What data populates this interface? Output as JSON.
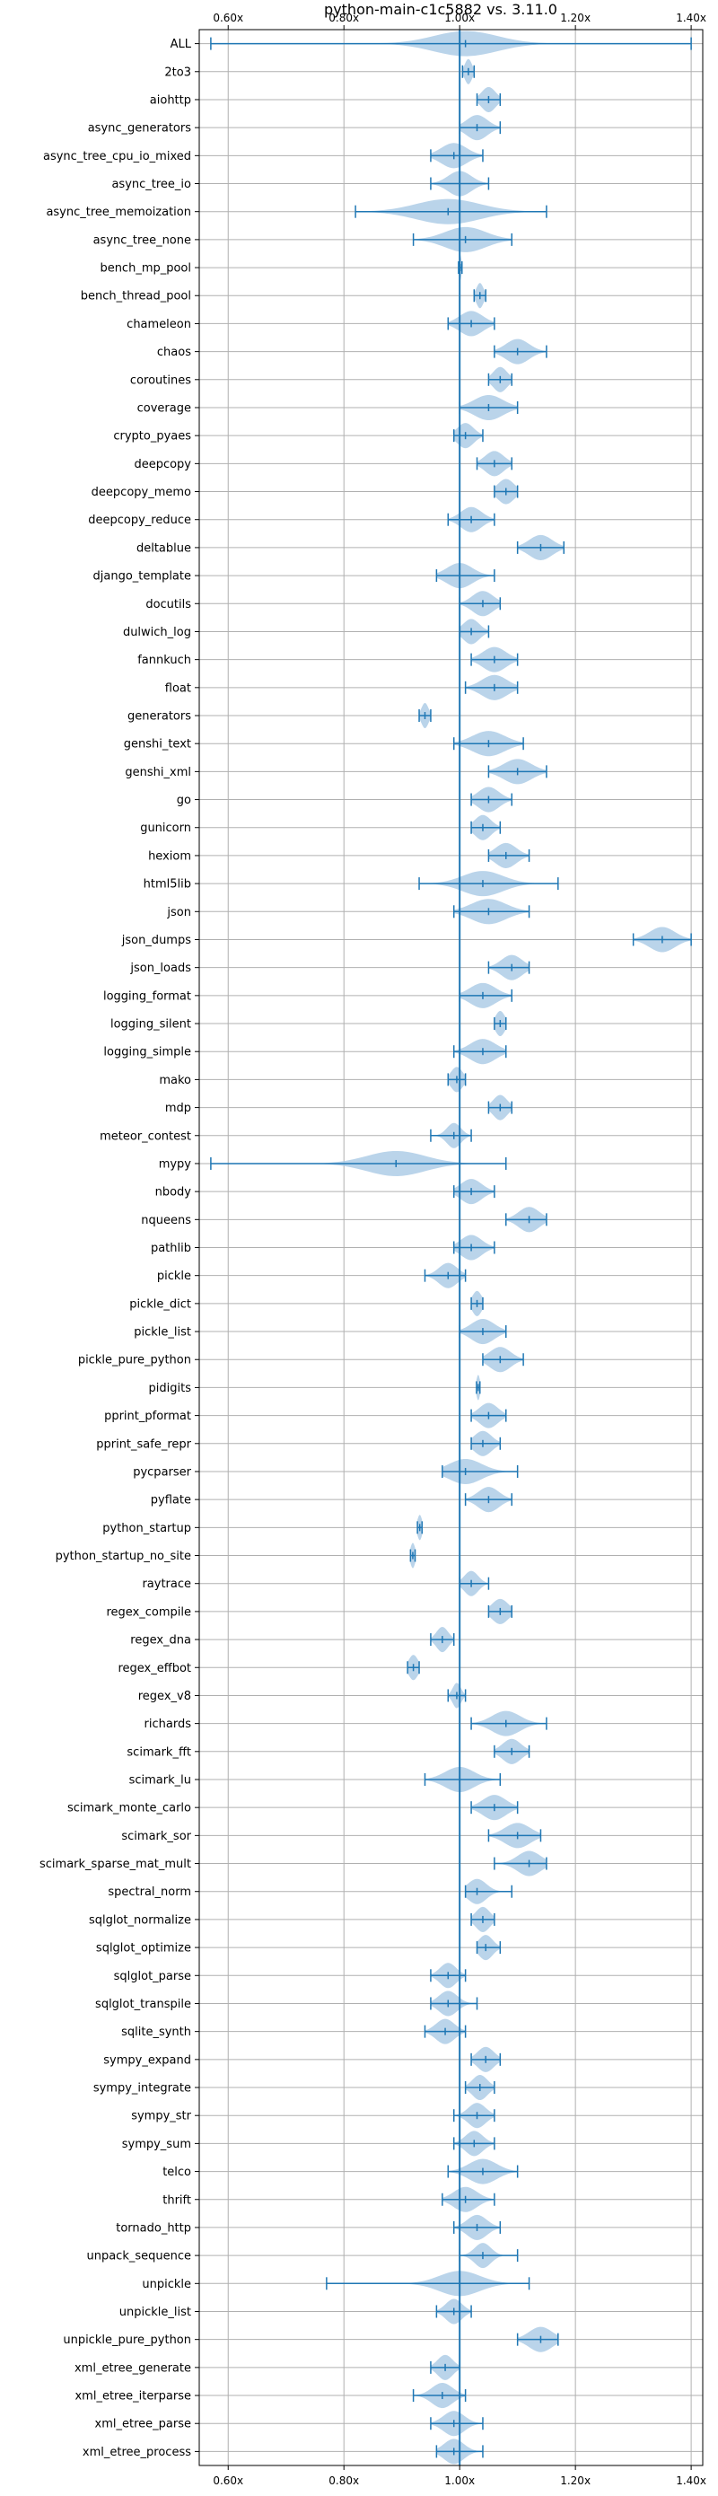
{
  "chart_data": {
    "type": "violin",
    "title": "python-main-c1c5882 vs. 3.11.0",
    "xlabel": "",
    "ylabel": "",
    "xlim": [
      0.55,
      1.42
    ],
    "xticks": [
      0.6,
      0.8,
      1.0,
      1.2,
      1.4
    ],
    "xtick_labels": [
      "0.60x",
      "0.80x",
      "1.00x",
      "1.20x",
      "1.40x"
    ],
    "tick_positions": [
      "top",
      "bottom"
    ],
    "reference_line": 1.0,
    "grid": true,
    "colors": {
      "accent": "#1f77b4",
      "fill": "#aecde6",
      "grid": "#b0b0b0"
    },
    "benchmarks": [
      {
        "name": "ALL",
        "min": 0.57,
        "max": 1.4,
        "median": 1.01,
        "spread": 0.055
      },
      {
        "name": "2to3",
        "min": 1.005,
        "max": 1.025,
        "median": 1.015,
        "spread": 0.006
      },
      {
        "name": "aiohttp",
        "min": 1.03,
        "max": 1.07,
        "median": 1.05,
        "spread": 0.012
      },
      {
        "name": "async_generators",
        "min": 1.0,
        "max": 1.07,
        "median": 1.03,
        "spread": 0.018
      },
      {
        "name": "async_tree_cpu_io_mixed",
        "min": 0.95,
        "max": 1.04,
        "median": 0.99,
        "spread": 0.022
      },
      {
        "name": "async_tree_io",
        "min": 0.95,
        "max": 1.05,
        "median": 1.0,
        "spread": 0.02
      },
      {
        "name": "async_tree_memoization",
        "min": 0.82,
        "max": 1.15,
        "median": 0.98,
        "spread": 0.055
      },
      {
        "name": "async_tree_none",
        "min": 0.92,
        "max": 1.09,
        "median": 1.01,
        "spread": 0.035
      },
      {
        "name": "bench_mp_pool",
        "min": 0.998,
        "max": 1.004,
        "median": 1.001,
        "spread": 0.002
      },
      {
        "name": "bench_thread_pool",
        "min": 1.025,
        "max": 1.045,
        "median": 1.035,
        "spread": 0.006
      },
      {
        "name": "chameleon",
        "min": 0.98,
        "max": 1.06,
        "median": 1.02,
        "spread": 0.02
      },
      {
        "name": "chaos",
        "min": 1.06,
        "max": 1.15,
        "median": 1.1,
        "spread": 0.02
      },
      {
        "name": "coroutines",
        "min": 1.05,
        "max": 1.09,
        "median": 1.07,
        "spread": 0.012
      },
      {
        "name": "coverage",
        "min": 1.0,
        "max": 1.1,
        "median": 1.05,
        "spread": 0.025
      },
      {
        "name": "crypto_pyaes",
        "min": 0.99,
        "max": 1.04,
        "median": 1.01,
        "spread": 0.014
      },
      {
        "name": "deepcopy",
        "min": 1.03,
        "max": 1.09,
        "median": 1.06,
        "spread": 0.016
      },
      {
        "name": "deepcopy_memo",
        "min": 1.06,
        "max": 1.1,
        "median": 1.08,
        "spread": 0.014
      },
      {
        "name": "deepcopy_reduce",
        "min": 0.98,
        "max": 1.06,
        "median": 1.02,
        "spread": 0.018
      },
      {
        "name": "deltablue",
        "min": 1.1,
        "max": 1.18,
        "median": 1.14,
        "spread": 0.02
      },
      {
        "name": "django_template",
        "min": 0.96,
        "max": 1.06,
        "median": 1.0,
        "spread": 0.022
      },
      {
        "name": "docutils",
        "min": 1.0,
        "max": 1.07,
        "median": 1.04,
        "spread": 0.018
      },
      {
        "name": "dulwich_log",
        "min": 1.0,
        "max": 1.05,
        "median": 1.02,
        "spread": 0.014
      },
      {
        "name": "fannkuch",
        "min": 1.02,
        "max": 1.1,
        "median": 1.06,
        "spread": 0.02
      },
      {
        "name": "float",
        "min": 1.01,
        "max": 1.1,
        "median": 1.06,
        "spread": 0.022
      },
      {
        "name": "generators",
        "min": 0.93,
        "max": 0.95,
        "median": 0.94,
        "spread": 0.006
      },
      {
        "name": "genshi_text",
        "min": 0.99,
        "max": 1.11,
        "median": 1.05,
        "spread": 0.028
      },
      {
        "name": "genshi_xml",
        "min": 1.05,
        "max": 1.15,
        "median": 1.1,
        "spread": 0.024
      },
      {
        "name": "go",
        "min": 1.02,
        "max": 1.09,
        "median": 1.05,
        "spread": 0.018
      },
      {
        "name": "gunicorn",
        "min": 1.02,
        "max": 1.07,
        "median": 1.04,
        "spread": 0.014
      },
      {
        "name": "hexiom",
        "min": 1.05,
        "max": 1.12,
        "median": 1.08,
        "spread": 0.018
      },
      {
        "name": "html5lib",
        "min": 0.93,
        "max": 1.17,
        "median": 1.04,
        "spread": 0.035
      },
      {
        "name": "json",
        "min": 0.99,
        "max": 1.12,
        "median": 1.05,
        "spread": 0.03
      },
      {
        "name": "json_dumps",
        "min": 1.3,
        "max": 1.4,
        "median": 1.35,
        "spread": 0.022
      },
      {
        "name": "json_loads",
        "min": 1.05,
        "max": 1.12,
        "median": 1.09,
        "spread": 0.018
      },
      {
        "name": "logging_format",
        "min": 1.0,
        "max": 1.09,
        "median": 1.04,
        "spread": 0.022
      },
      {
        "name": "logging_silent",
        "min": 1.06,
        "max": 1.08,
        "median": 1.07,
        "spread": 0.008
      },
      {
        "name": "logging_simple",
        "min": 0.99,
        "max": 1.08,
        "median": 1.04,
        "spread": 0.022
      },
      {
        "name": "mako",
        "min": 0.98,
        "max": 1.01,
        "median": 0.995,
        "spread": 0.01
      },
      {
        "name": "mdp",
        "min": 1.05,
        "max": 1.09,
        "median": 1.07,
        "spread": 0.012
      },
      {
        "name": "meteor_contest",
        "min": 0.95,
        "max": 1.02,
        "median": 0.99,
        "spread": 0.012
      },
      {
        "name": "mypy",
        "min": 0.57,
        "max": 1.08,
        "median": 0.89,
        "spread": 0.05
      },
      {
        "name": "nbody",
        "min": 0.99,
        "max": 1.06,
        "median": 1.02,
        "spread": 0.018
      },
      {
        "name": "nqueens",
        "min": 1.08,
        "max": 1.15,
        "median": 1.12,
        "spread": 0.018
      },
      {
        "name": "pathlib",
        "min": 0.99,
        "max": 1.06,
        "median": 1.02,
        "spread": 0.018
      },
      {
        "name": "pickle",
        "min": 0.94,
        "max": 1.01,
        "median": 0.98,
        "spread": 0.016
      },
      {
        "name": "pickle_dict",
        "min": 1.02,
        "max": 1.04,
        "median": 1.03,
        "spread": 0.008
      },
      {
        "name": "pickle_list",
        "min": 1.0,
        "max": 1.08,
        "median": 1.04,
        "spread": 0.02
      },
      {
        "name": "pickle_pure_python",
        "min": 1.04,
        "max": 1.11,
        "median": 1.07,
        "spread": 0.018
      },
      {
        "name": "pidigits",
        "min": 1.029,
        "max": 1.035,
        "median": 1.032,
        "spread": 0.003
      },
      {
        "name": "pprint_pformat",
        "min": 1.02,
        "max": 1.08,
        "median": 1.05,
        "spread": 0.016
      },
      {
        "name": "pprint_safe_repr",
        "min": 1.02,
        "max": 1.07,
        "median": 1.04,
        "spread": 0.015
      },
      {
        "name": "pycparser",
        "min": 0.97,
        "max": 1.1,
        "median": 1.01,
        "spread": 0.028
      },
      {
        "name": "pyflate",
        "min": 1.01,
        "max": 1.09,
        "median": 1.05,
        "spread": 0.018
      },
      {
        "name": "python_startup",
        "min": 0.927,
        "max": 0.935,
        "median": 0.931,
        "spread": 0.004
      },
      {
        "name": "python_startup_no_site",
        "min": 0.915,
        "max": 0.923,
        "median": 0.919,
        "spread": 0.004
      },
      {
        "name": "raytrace",
        "min": 1.0,
        "max": 1.05,
        "median": 1.02,
        "spread": 0.012
      },
      {
        "name": "regex_compile",
        "min": 1.05,
        "max": 1.09,
        "median": 1.07,
        "spread": 0.014
      },
      {
        "name": "regex_dna",
        "min": 0.95,
        "max": 0.99,
        "median": 0.97,
        "spread": 0.01
      },
      {
        "name": "regex_effbot",
        "min": 0.91,
        "max": 0.93,
        "median": 0.92,
        "spread": 0.008
      },
      {
        "name": "regex_v8",
        "min": 0.98,
        "max": 1.01,
        "median": 0.995,
        "spread": 0.007
      },
      {
        "name": "richards",
        "min": 1.02,
        "max": 1.15,
        "median": 1.08,
        "spread": 0.024
      },
      {
        "name": "scimark_fft",
        "min": 1.06,
        "max": 1.12,
        "median": 1.09,
        "spread": 0.016
      },
      {
        "name": "scimark_lu",
        "min": 0.94,
        "max": 1.07,
        "median": 1.0,
        "spread": 0.025
      },
      {
        "name": "scimark_monte_carlo",
        "min": 1.02,
        "max": 1.1,
        "median": 1.06,
        "spread": 0.02
      },
      {
        "name": "scimark_sor",
        "min": 1.05,
        "max": 1.14,
        "median": 1.1,
        "spread": 0.022
      },
      {
        "name": "scimark_sparse_mat_mult",
        "min": 1.06,
        "max": 1.15,
        "median": 1.12,
        "spread": 0.02
      },
      {
        "name": "spectral_norm",
        "min": 1.01,
        "max": 1.09,
        "median": 1.03,
        "spread": 0.016
      },
      {
        "name": "sqlglot_normalize",
        "min": 1.02,
        "max": 1.06,
        "median": 1.04,
        "spread": 0.012
      },
      {
        "name": "sqlglot_optimize",
        "min": 1.03,
        "max": 1.07,
        "median": 1.045,
        "spread": 0.012
      },
      {
        "name": "sqlglot_parse",
        "min": 0.95,
        "max": 1.01,
        "median": 0.98,
        "spread": 0.014
      },
      {
        "name": "sqlglot_transpile",
        "min": 0.95,
        "max": 1.03,
        "median": 0.98,
        "spread": 0.016
      },
      {
        "name": "sqlite_synth",
        "min": 0.94,
        "max": 1.01,
        "median": 0.975,
        "spread": 0.016
      },
      {
        "name": "sympy_expand",
        "min": 1.02,
        "max": 1.07,
        "median": 1.045,
        "spread": 0.014
      },
      {
        "name": "sympy_integrate",
        "min": 1.01,
        "max": 1.06,
        "median": 1.035,
        "spread": 0.013
      },
      {
        "name": "sympy_str",
        "min": 0.99,
        "max": 1.06,
        "median": 1.03,
        "spread": 0.015
      },
      {
        "name": "sympy_sum",
        "min": 0.99,
        "max": 1.06,
        "median": 1.025,
        "spread": 0.015
      },
      {
        "name": "telco",
        "min": 0.98,
        "max": 1.1,
        "median": 1.04,
        "spread": 0.024
      },
      {
        "name": "thrift",
        "min": 0.97,
        "max": 1.06,
        "median": 1.01,
        "spread": 0.02
      },
      {
        "name": "tornado_http",
        "min": 0.99,
        "max": 1.07,
        "median": 1.03,
        "spread": 0.017
      },
      {
        "name": "unpack_sequence",
        "min": 1.0,
        "max": 1.1,
        "median": 1.04,
        "spread": 0.014
      },
      {
        "name": "unpickle",
        "min": 0.77,
        "max": 1.12,
        "median": 1.0,
        "spread": 0.035
      },
      {
        "name": "unpickle_list",
        "min": 0.96,
        "max": 1.02,
        "median": 0.99,
        "spread": 0.014
      },
      {
        "name": "unpickle_pure_python",
        "min": 1.1,
        "max": 1.17,
        "median": 1.14,
        "spread": 0.02
      },
      {
        "name": "xml_etree_generate",
        "min": 0.95,
        "max": 1.0,
        "median": 0.975,
        "spread": 0.013
      },
      {
        "name": "xml_etree_iterparse",
        "min": 0.92,
        "max": 1.01,
        "median": 0.97,
        "spread": 0.018
      },
      {
        "name": "xml_etree_parse",
        "min": 0.95,
        "max": 1.04,
        "median": 0.99,
        "spread": 0.018
      },
      {
        "name": "xml_etree_process",
        "min": 0.96,
        "max": 1.04,
        "median": 0.99,
        "spread": 0.017
      }
    ]
  }
}
